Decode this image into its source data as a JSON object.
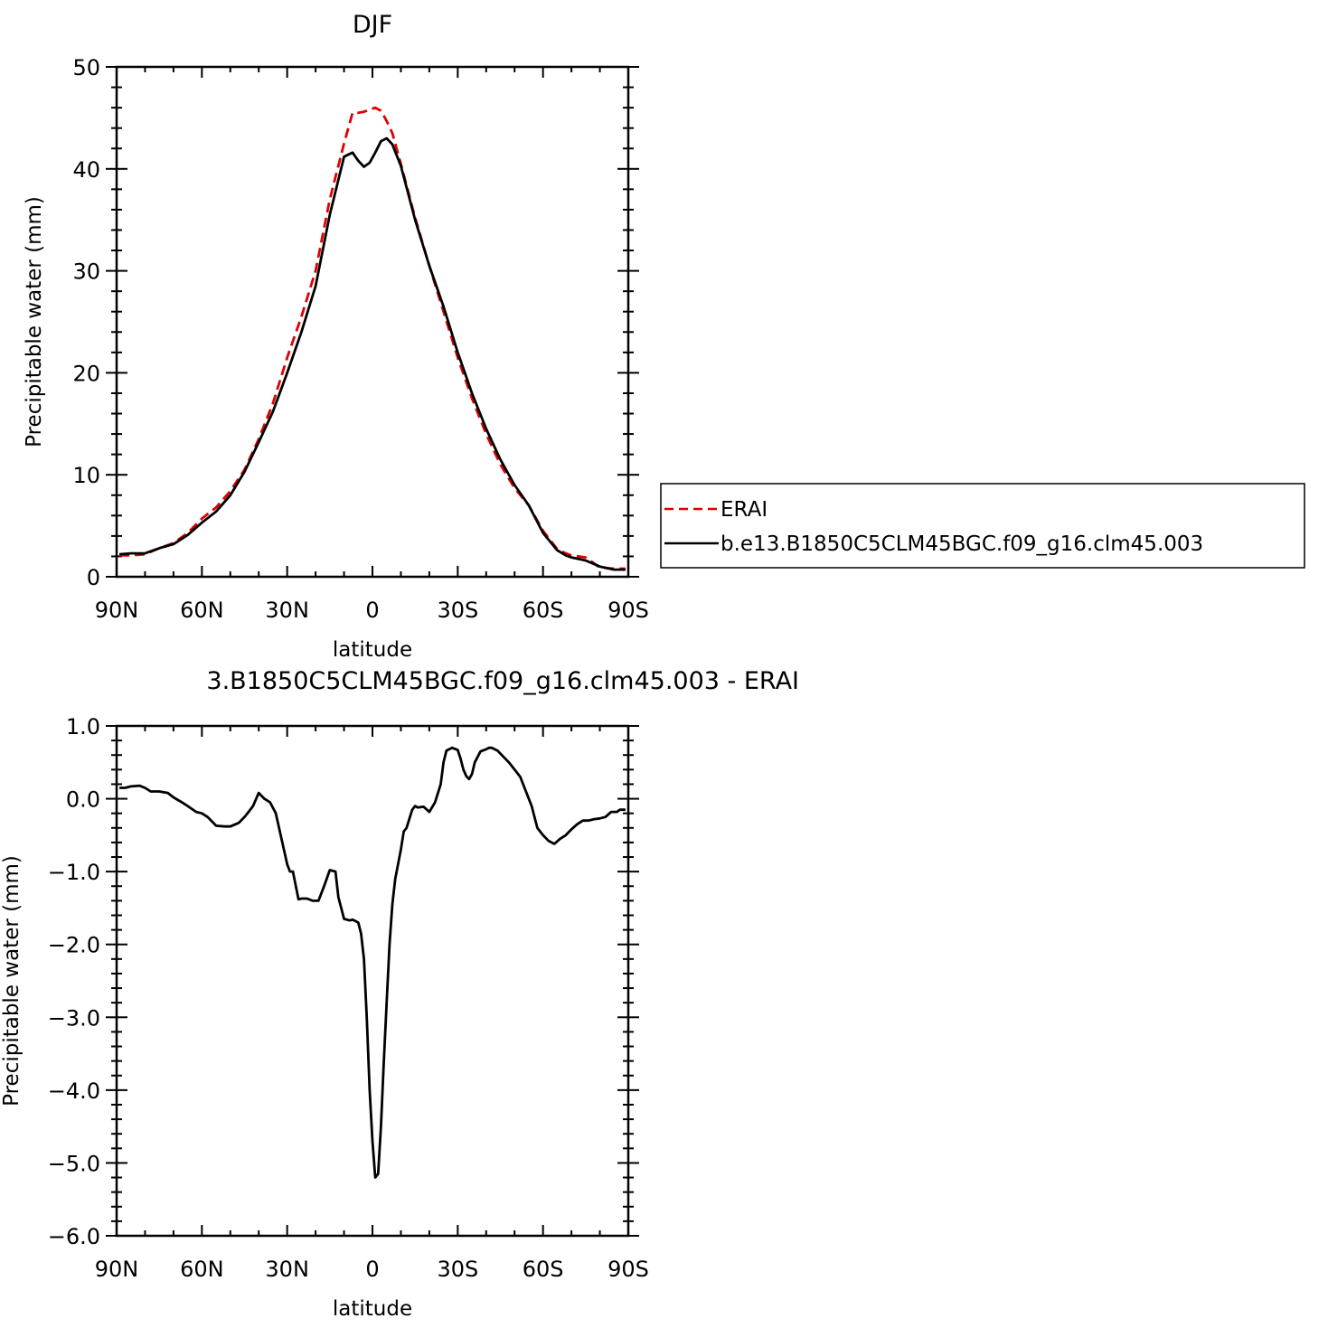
{
  "chart_data": [
    {
      "type": "line",
      "title": "DJF",
      "xlabel": "latitude",
      "ylabel": "Precipitable water (mm)",
      "xlim": [
        90,
        -90
      ],
      "ylim": [
        0,
        50
      ],
      "xticks": [
        {
          "value": 90,
          "label": "90N"
        },
        {
          "value": 60,
          "label": "60N"
        },
        {
          "value": 30,
          "label": "30N"
        },
        {
          "value": 0,
          "label": "0"
        },
        {
          "value": -30,
          "label": "30S"
        },
        {
          "value": -60,
          "label": "60S"
        },
        {
          "value": -90,
          "label": "90S"
        }
      ],
      "yticks": [
        {
          "value": 0,
          "label": "0"
        },
        {
          "value": 10,
          "label": "10"
        },
        {
          "value": 20,
          "label": "20"
        },
        {
          "value": 30,
          "label": "30"
        },
        {
          "value": 40,
          "label": "40"
        },
        {
          "value": 50,
          "label": "50"
        }
      ],
      "legend_position": "right",
      "series": [
        {
          "name": "ERAI",
          "color": "#e00000",
          "dash": "dashed",
          "x": [
            89,
            85,
            80,
            75,
            70,
            65,
            60,
            55,
            50,
            45,
            40,
            35,
            30,
            25,
            20,
            15,
            10,
            7,
            5,
            3,
            1,
            -1,
            -3,
            -5,
            -7,
            -10,
            -15,
            -20,
            -25,
            -30,
            -35,
            -40,
            -45,
            -50,
            -55,
            -60,
            -65,
            -68,
            -70,
            -75,
            -80,
            -85,
            -89
          ],
          "y": [
            2.1,
            2.1,
            2.2,
            2.8,
            3.3,
            4.3,
            5.7,
            6.8,
            8.4,
            10.5,
            13.5,
            17.0,
            21.5,
            25.5,
            30.0,
            37.0,
            42.5,
            45.5,
            45.5,
            45.6,
            45.8,
            46.0,
            45.7,
            44.7,
            43.5,
            40.5,
            35.2,
            30.5,
            26.0,
            21.5,
            17.5,
            14.0,
            11.0,
            8.7,
            7.0,
            4.5,
            2.7,
            2.3,
            2.1,
            1.9,
            0.9,
            0.8,
            0.8
          ]
        },
        {
          "name": "b.e13.B1850C5CLM45BGC.f09_g16.clm45.003",
          "color": "#000000",
          "dash": "solid",
          "x": [
            89,
            85,
            80,
            75,
            70,
            65,
            60,
            55,
            50,
            45,
            40,
            35,
            30,
            25,
            20,
            15,
            10,
            7,
            5,
            3,
            1,
            -1,
            -3,
            -5,
            -7,
            -10,
            -15,
            -20,
            -25,
            -30,
            -35,
            -40,
            -45,
            -50,
            -55,
            -60,
            -65,
            -68,
            -70,
            -75,
            -80,
            -85,
            -89
          ],
          "y": [
            2.2,
            2.3,
            2.3,
            2.8,
            3.2,
            4.1,
            5.3,
            6.4,
            8.0,
            10.3,
            13.2,
            16.2,
            20.0,
            24.0,
            28.5,
            35.5,
            41.2,
            41.6,
            40.8,
            40.2,
            40.6,
            41.6,
            42.7,
            43.0,
            42.4,
            40.3,
            35.0,
            30.5,
            26.5,
            22.0,
            18.0,
            14.5,
            11.5,
            9.0,
            7.0,
            4.3,
            2.6,
            2.1,
            1.9,
            1.6,
            1.0,
            0.7,
            0.7
          ]
        }
      ]
    },
    {
      "type": "line",
      "title": "3.B1850C5CLM45BGC.f09_g16.clm45.003 - ERAI",
      "xlabel": "latitude",
      "ylabel": "Precipitable water (mm)",
      "xlim": [
        90,
        -90
      ],
      "ylim": [
        -6.0,
        1.0
      ],
      "xticks": [
        {
          "value": 90,
          "label": "90N"
        },
        {
          "value": 60,
          "label": "60N"
        },
        {
          "value": 30,
          "label": "30N"
        },
        {
          "value": 0,
          "label": "0"
        },
        {
          "value": -30,
          "label": "30S"
        },
        {
          "value": -60,
          "label": "60S"
        },
        {
          "value": -90,
          "label": "90S"
        }
      ],
      "yticks": [
        {
          "value": 1.0,
          "label": "1.0"
        },
        {
          "value": 0.0,
          "label": "0.0"
        },
        {
          "value": -1.0,
          "label": "−1.0"
        },
        {
          "value": -2.0,
          "label": "−2.0"
        },
        {
          "value": -3.0,
          "label": "−3.0"
        },
        {
          "value": -4.0,
          "label": "−4.0"
        },
        {
          "value": -5.0,
          "label": "−5.0"
        },
        {
          "value": -6.0,
          "label": "−6.0"
        }
      ],
      "series": [
        {
          "color": "#000000",
          "dash": "solid",
          "x": [
            89,
            87,
            85,
            82,
            80,
            78,
            75,
            72,
            70,
            67,
            65,
            62,
            60,
            58,
            55,
            52,
            50,
            47,
            45,
            43,
            42,
            40,
            38,
            36,
            34,
            32,
            30,
            29,
            28,
            26,
            25,
            23,
            21,
            19,
            17,
            15,
            13,
            12,
            10,
            8,
            7,
            5,
            4,
            3,
            2,
            1,
            0,
            -1,
            -2,
            -3,
            -4,
            -5,
            -6,
            -7,
            -8,
            -9,
            -10,
            -11,
            -12,
            -14,
            -15,
            -16,
            -18,
            -20,
            -22,
            -24,
            -25,
            -26,
            -28,
            -30,
            -31,
            -32,
            -33,
            -34,
            -35,
            -36,
            -38,
            -40,
            -41,
            -42,
            -44,
            -46,
            -48,
            -50,
            -52,
            -54,
            -56,
            -58,
            -60,
            -62,
            -64,
            -66,
            -68,
            -70,
            -72,
            -74,
            -76,
            -78,
            -80,
            -82,
            -84,
            -86,
            -87,
            -88,
            -89
          ],
          "y": [
            0.15,
            0.15,
            0.17,
            0.18,
            0.15,
            0.1,
            0.1,
            0.08,
            0.02,
            -0.05,
            -0.1,
            -0.18,
            -0.2,
            -0.25,
            -0.37,
            -0.38,
            -0.38,
            -0.33,
            -0.25,
            -0.15,
            -0.1,
            0.08,
            0.0,
            -0.05,
            -0.2,
            -0.55,
            -0.9,
            -1.0,
            -1.0,
            -1.38,
            -1.37,
            -1.37,
            -1.4,
            -1.4,
            -1.2,
            -0.98,
            -1.0,
            -1.35,
            -1.65,
            -1.67,
            -1.66,
            -1.7,
            -1.85,
            -2.2,
            -3.0,
            -4.0,
            -4.7,
            -5.2,
            -5.15,
            -4.5,
            -3.6,
            -2.8,
            -2.0,
            -1.45,
            -1.1,
            -0.9,
            -0.7,
            -0.45,
            -0.4,
            -0.15,
            -0.1,
            -0.12,
            -0.11,
            -0.18,
            -0.05,
            0.2,
            0.5,
            0.66,
            0.7,
            0.67,
            0.55,
            0.4,
            0.31,
            0.27,
            0.34,
            0.5,
            0.65,
            0.68,
            0.7,
            0.7,
            0.66,
            0.58,
            0.5,
            0.4,
            0.3,
            0.1,
            -0.1,
            -0.4,
            -0.5,
            -0.58,
            -0.62,
            -0.55,
            -0.5,
            -0.42,
            -0.35,
            -0.3,
            -0.3,
            -0.28,
            -0.27,
            -0.25,
            -0.18,
            -0.18,
            -0.15,
            -0.15,
            -0.15
          ]
        }
      ]
    }
  ]
}
